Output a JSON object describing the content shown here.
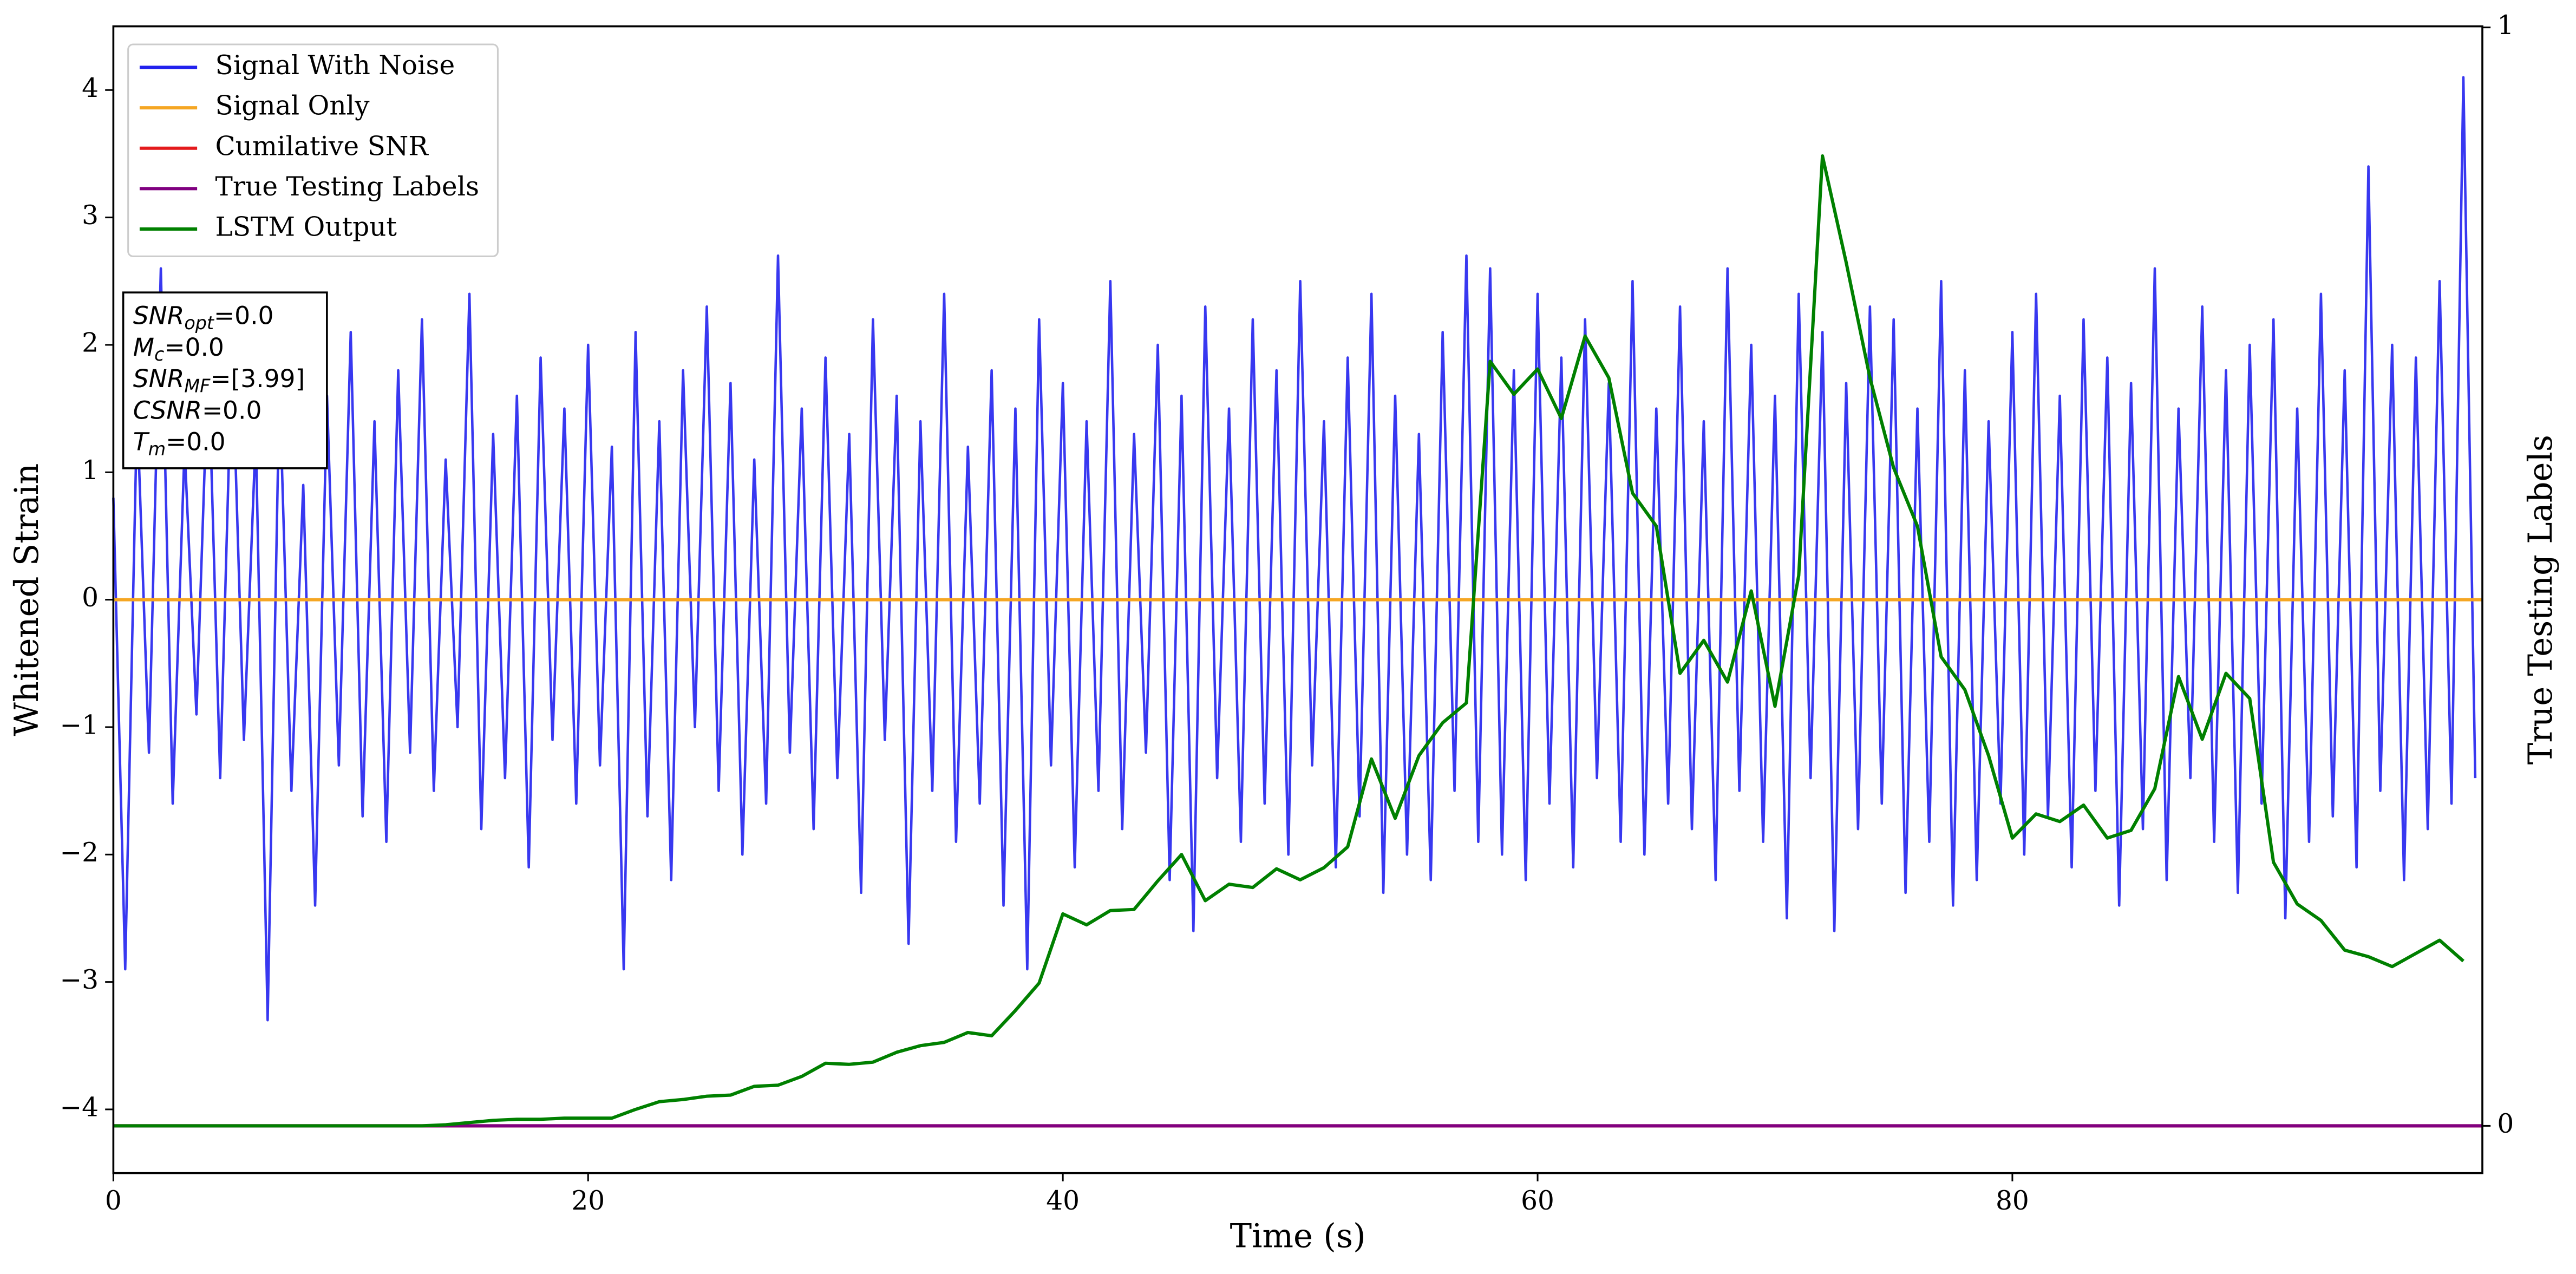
{
  "chart_data": {
    "type": "line",
    "xlabel": "Time (s)",
    "ylabel": "Whitened Strain",
    "y2label": "True Testing Labels",
    "xlim": [
      0,
      99.8
    ],
    "ylim": [
      -4.5,
      4.5
    ],
    "y2lim": [
      -0.043,
      1.001
    ],
    "xticks": [
      0,
      20,
      40,
      60,
      80
    ],
    "yticks": [
      {
        "value": -4,
        "label": "−4"
      },
      {
        "value": -3,
        "label": "−3"
      },
      {
        "value": -2,
        "label": "−2"
      },
      {
        "value": -1,
        "label": "−1"
      },
      0,
      1,
      2,
      3,
      4
    ],
    "y2ticks": [
      0,
      1
    ],
    "legend": "upper left",
    "series": [
      {
        "name": "Signal With Noise",
        "color": "#2222ee",
        "x": [
          0,
          0.5,
          1,
          1.5,
          2,
          2.5,
          3,
          3.5,
          4,
          4.5,
          5,
          5.5,
          6,
          6.5,
          7,
          7.5,
          8,
          8.5,
          9,
          9.5,
          10,
          10.5,
          11,
          11.5,
          12,
          12.5,
          13,
          13.5,
          14,
          14.5,
          15,
          15.5,
          16,
          16.5,
          17,
          17.5,
          18,
          18.5,
          19,
          19.5,
          20,
          20.5,
          21,
          21.5,
          22,
          22.5,
          23,
          23.5,
          24,
          24.5,
          25,
          25.5,
          26,
          26.5,
          27,
          27.5,
          28,
          28.5,
          29,
          29.5,
          30,
          30.5,
          31,
          31.5,
          32,
          32.5,
          33,
          33.5,
          34,
          34.5,
          35,
          35.5,
          36,
          36.5,
          37,
          37.5,
          38,
          38.5,
          39,
          39.5,
          40,
          40.5,
          41,
          41.5,
          42,
          42.5,
          43,
          43.5,
          44,
          44.5,
          45,
          45.5,
          46,
          46.5,
          47,
          47.5,
          48,
          48.5,
          49,
          49.5,
          50,
          50.5,
          51,
          51.5,
          52,
          52.5,
          53,
          53.5,
          54,
          54.5,
          55,
          55.5,
          56,
          56.5,
          57,
          57.5,
          58,
          58.5,
          59,
          59.5,
          60,
          60.5,
          61,
          61.5,
          62,
          62.5,
          63,
          63.5,
          64,
          64.5,
          65,
          65.5,
          66,
          66.5,
          67,
          67.5,
          68,
          68.5,
          69,
          69.5,
          70,
          70.5,
          71,
          71.5,
          72,
          72.5,
          73,
          73.5,
          74,
          74.5,
          75,
          75.5,
          76,
          76.5,
          77,
          77.5,
          78,
          78.5,
          79,
          79.5,
          80,
          80.5,
          81,
          81.5,
          82,
          82.5,
          83,
          83.5,
          84,
          84.5,
          85,
          85.5,
          86,
          86.5,
          87,
          87.5,
          88,
          88.5,
          89,
          89.5,
          90,
          90.5,
          91,
          91.5,
          92,
          92.5,
          93,
          93.5,
          94,
          94.5,
          95,
          95.5,
          96,
          96.5,
          97,
          97.5,
          98,
          98.5,
          99,
          99.5
        ],
        "values": [
          0.8,
          -2.9,
          1.5,
          -1.2,
          2.6,
          -1.6,
          1.2,
          -0.9,
          1.9,
          -1.4,
          2.0,
          -1.1,
          1.3,
          -3.3,
          1.7,
          -1.5,
          0.9,
          -2.4,
          1.6,
          -1.3,
          2.1,
          -1.7,
          1.4,
          -1.9,
          1.8,
          -1.2,
          2.2,
          -1.5,
          1.1,
          -1.0,
          2.4,
          -1.8,
          1.3,
          -1.4,
          1.6,
          -2.1,
          1.9,
          -1.1,
          1.5,
          -1.6,
          2.0,
          -1.3,
          1.2,
          -2.9,
          2.1,
          -1.7,
          1.4,
          -2.2,
          1.8,
          -1.0,
          2.3,
          -1.5,
          1.7,
          -2.0,
          1.1,
          -1.6,
          2.7,
          -1.2,
          1.5,
          -1.8,
          1.9,
          -1.4,
          1.3,
          -2.3,
          2.2,
          -1.1,
          1.6,
          -2.7,
          1.4,
          -1.5,
          2.4,
          -1.9,
          1.2,
          -1.6,
          1.8,
          -2.4,
          1.5,
          -2.9,
          2.2,
          -1.3,
          1.7,
          -2.1,
          1.4,
          -1.5,
          2.5,
          -1.8,
          1.3,
          -1.2,
          2.0,
          -2.2,
          1.6,
          -2.6,
          2.3,
          -1.4,
          1.5,
          -1.9,
          2.2,
          -1.6,
          1.8,
          -2.0,
          2.5,
          -1.3,
          1.4,
          -2.1,
          1.9,
          -1.7,
          2.4,
          -2.3,
          1.6,
          -2.0,
          1.3,
          -2.2,
          2.1,
          -1.5,
          2.7,
          -1.9,
          2.6,
          -2.0,
          1.8,
          -2.2,
          2.4,
          -1.6,
          1.9,
          -2.1,
          2.2,
          -1.4,
          1.7,
          -1.9,
          2.5,
          -2.0,
          1.5,
          -1.6,
          2.3,
          -1.8,
          1.4,
          -2.2,
          2.6,
          -1.5,
          2.0,
          -1.9,
          1.6,
          -2.5,
          2.4,
          -1.4,
          2.1,
          -2.6,
          1.7,
          -1.8,
          2.3,
          -1.6,
          2.2,
          -2.3,
          1.5,
          -1.9,
          2.5,
          -2.4,
          1.8,
          -2.2,
          1.4,
          -1.6,
          2.1,
          -2.0,
          2.4,
          -1.7,
          1.6,
          -2.1,
          2.2,
          -1.5,
          1.9,
          -2.4,
          1.7,
          -1.8,
          2.6,
          -2.2,
          1.5,
          -1.4,
          2.3,
          -1.9,
          1.8,
          -2.3,
          2.0,
          -1.6,
          2.2,
          -2.5,
          1.5,
          -1.9,
          2.4,
          -1.7,
          1.8,
          -2.1,
          3.4,
          -1.5,
          2.0,
          -2.2,
          1.9,
          -1.8,
          2.5,
          -1.6,
          4.1,
          -1.4
        ]
      },
      {
        "name": "Signal Only",
        "color": "#f5a623",
        "x": [
          0,
          99.8
        ],
        "values": [
          0,
          0
        ]
      },
      {
        "name": "Cumilative SNR",
        "color": "#e41a1c",
        "axis": "y2",
        "x": [
          0,
          99.8
        ],
        "values": [
          0,
          0
        ]
      },
      {
        "name": "True Testing Labels",
        "color": "#800080",
        "axis": "y2",
        "x": [
          0,
          99.8
        ],
        "values": [
          0,
          0
        ]
      },
      {
        "name": "LSTM Output",
        "color": "#008000",
        "axis": "y2",
        "x": [
          0,
          1,
          2,
          3,
          4,
          5,
          6,
          7,
          8,
          9,
          10,
          11,
          12,
          13,
          14,
          15,
          16,
          17,
          18,
          19,
          20,
          21,
          22,
          23,
          24,
          25,
          26,
          27,
          28,
          29,
          30,
          31,
          32,
          33,
          34,
          35,
          36,
          37,
          38,
          39,
          40,
          41,
          42,
          43,
          44,
          45,
          46,
          47,
          48,
          49,
          50,
          51,
          52,
          53,
          54,
          55,
          56,
          57,
          58,
          59,
          60,
          61,
          62,
          63,
          64,
          65,
          66,
          67,
          68,
          69,
          70,
          71,
          72,
          73,
          74,
          75,
          76,
          77,
          78,
          79,
          80,
          81,
          82,
          83,
          84,
          85,
          86,
          87,
          88,
          89,
          90,
          91,
          92,
          93,
          94,
          95,
          96,
          97,
          98,
          99
        ],
        "values": [
          0,
          0,
          0,
          0,
          0,
          0,
          0,
          0,
          0,
          0,
          0,
          0,
          0,
          0,
          0.001,
          0.003,
          0.005,
          0.006,
          0.006,
          0.007,
          0.007,
          0.007,
          0.015,
          0.022,
          0.024,
          0.027,
          0.028,
          0.036,
          0.037,
          0.045,
          0.057,
          0.056,
          0.058,
          0.067,
          0.073,
          0.076,
          0.085,
          0.082,
          0.105,
          0.13,
          0.193,
          0.183,
          0.196,
          0.197,
          0.223,
          0.247,
          0.205,
          0.22,
          0.217,
          0.234,
          0.224,
          0.235,
          0.254,
          0.334,
          0.28,
          0.337,
          0.367,
          0.385,
          0.696,
          0.666,
          0.689,
          0.644,
          0.719,
          0.681,
          0.576,
          0.546,
          0.412,
          0.442,
          0.404,
          0.487,
          0.382,
          0.501,
          0.883,
          0.786,
          0.681,
          0.599,
          0.546,
          0.427,
          0.397,
          0.337,
          0.262,
          0.284,
          0.277,
          0.292,
          0.262,
          0.269,
          0.307,
          0.409,
          0.352,
          0.412,
          0.389,
          0.24,
          0.202,
          0.187,
          0.16,
          0.154,
          0.145,
          0.157,
          0.169,
          0.15
        ]
      }
    ],
    "annotations": [
      {
        "symbol": "SNR",
        "subscript": "opt",
        "text": "=0.0"
      },
      {
        "symbol": "M",
        "subscript": "c",
        "text": "=0.0"
      },
      {
        "symbol": "SNR",
        "subscript": "MF",
        "text": "=[3.99]"
      },
      {
        "symbol": "CSNR",
        "text": "=0.0"
      },
      {
        "symbol": "T",
        "subscript": "m",
        "text": "=0.0"
      }
    ]
  }
}
